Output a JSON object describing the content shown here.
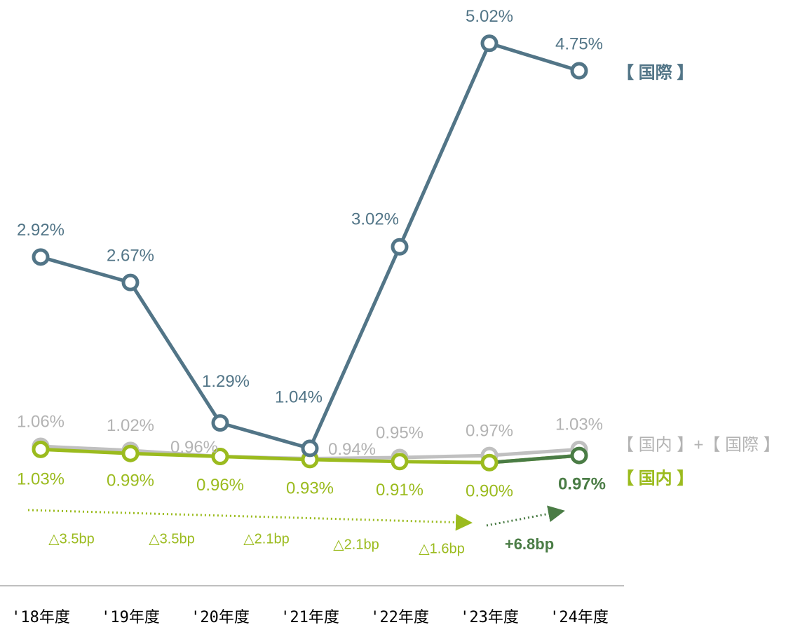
{
  "chart_data": {
    "type": "line",
    "categories": [
      "'18年度",
      "'19年度",
      "'20年度",
      "'21年度",
      "'22年度",
      "'23年度",
      "'24年度"
    ],
    "ylim": [
      0,
      5.17
    ],
    "series": [
      {
        "name": "【 国内 】+【 国際 】",
        "color": "#c0c0c0",
        "label_color": "#b3b3b3",
        "values": [
          1.06,
          1.02,
          0.96,
          0.94,
          0.95,
          0.97,
          1.03
        ],
        "value_labels": [
          "1.06%",
          "1.02%",
          "0.96%",
          "0.94%",
          "0.95%",
          "0.97%",
          "1.03%"
        ]
      },
      {
        "name": "【 国内 】",
        "color": "#9bbb1e",
        "label_color": "#9bbb1e",
        "last_color": "#4a7c45",
        "values": [
          1.03,
          0.99,
          0.96,
          0.93,
          0.91,
          0.9,
          0.97
        ],
        "value_labels": [
          "1.03%",
          "0.99%",
          "0.96%",
          "0.93%",
          "0.91%",
          "0.90%",
          "0.97%"
        ]
      },
      {
        "name": "【 国際 】",
        "color": "#527587",
        "label_color": "#527587",
        "values": [
          2.92,
          2.67,
          1.29,
          1.04,
          3.02,
          5.02,
          4.75
        ],
        "value_labels": [
          "2.92%",
          "2.67%",
          "1.29%",
          "1.04%",
          "3.02%",
          "5.02%",
          "4.75%"
        ]
      }
    ],
    "annotations": [
      "△3.5bp",
      "△3.5bp",
      "△2.1bp",
      "△2.1bp",
      "△1.6bp"
    ],
    "change_label": "+6.8bp"
  }
}
